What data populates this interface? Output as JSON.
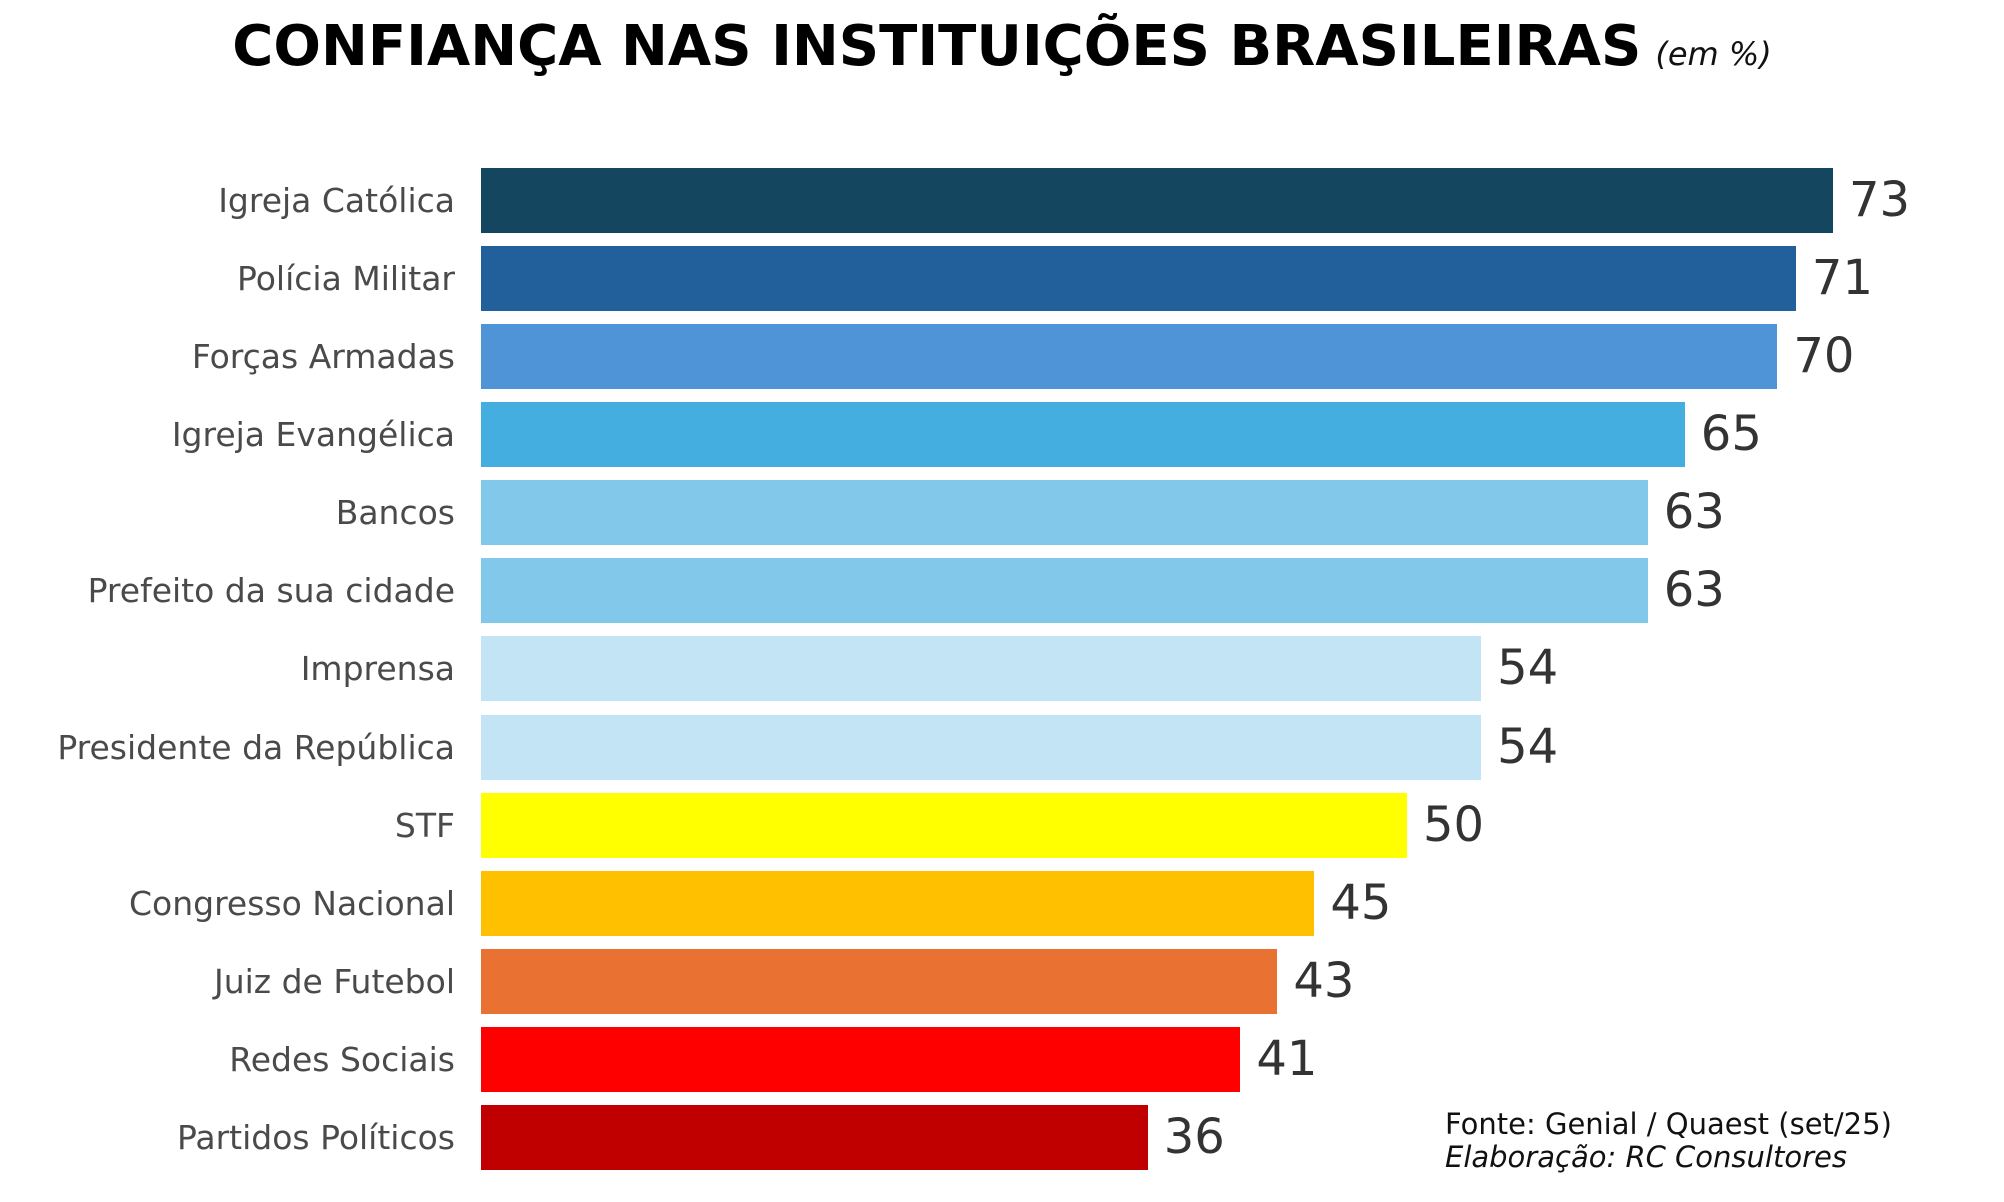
{
  "title": {
    "main": "CONFIANÇA NAS INSTITUIÇÕES BRASILEIRAS",
    "unit": "(em %)"
  },
  "source": {
    "line1": "Fonte: Genial / Quaest (set/25)",
    "line2": "Elaboração: RC Consultores"
  },
  "chart_data": {
    "type": "bar",
    "orientation": "horizontal",
    "title": "CONFIANÇA NAS INSTITUIÇÕES BRASILEIRAS (em %)",
    "xlabel": "",
    "ylabel": "",
    "grid": false,
    "legend": null,
    "data_labels": true,
    "xlim": [
      0,
      80
    ],
    "categories": [
      "Igreja Católica",
      "Polícia Militar",
      "Forças Armadas",
      "Igreja Evangélica",
      "Bancos",
      "Prefeito da sua cidade",
      "Imprensa",
      "Presidente da República",
      "STF",
      "Congresso Nacional",
      "Juiz de Futebol",
      "Redes Sociais",
      "Partidos Políticos"
    ],
    "values": [
      73,
      71,
      70,
      65,
      63,
      63,
      54,
      54,
      50,
      45,
      43,
      41,
      36
    ],
    "colors": [
      "#14465f",
      "#22609c",
      "#4f94d7",
      "#44aee0",
      "#82c8ea",
      "#82c8ea",
      "#c3e4f5",
      "#c3e4f5",
      "#ffff00",
      "#ffc000",
      "#e97132",
      "#ff0000",
      "#c00000"
    ],
    "annotations": [
      "Fonte: Genial / Quaest (set/25)",
      "Elaboração: RC Consultores"
    ]
  }
}
